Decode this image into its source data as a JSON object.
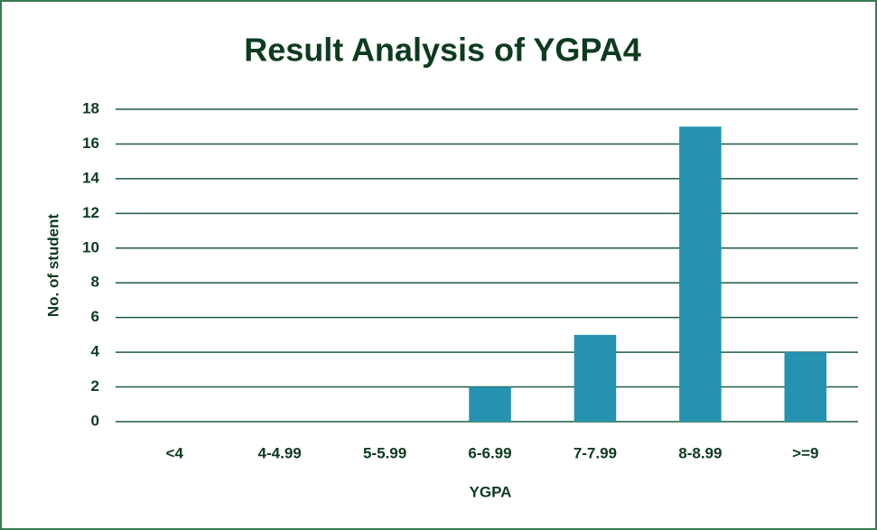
{
  "chart_data": {
    "type": "bar",
    "title": "Result Analysis of YGPA4",
    "x_label": "YGPA",
    "y_label": "No. of student",
    "categories": [
      "<4",
      "4-4.99",
      "5-5.99",
      "6-6.99",
      "7-7.99",
      "8-8.99",
      ">=9"
    ],
    "values": [
      0,
      0,
      0,
      2,
      5,
      17,
      4
    ],
    "color": "#2592b0",
    "ylim": [
      0,
      18
    ],
    "yticks": [
      0,
      2,
      4,
      6,
      8,
      10,
      12,
      14,
      16,
      18
    ],
    "grid": true
  }
}
